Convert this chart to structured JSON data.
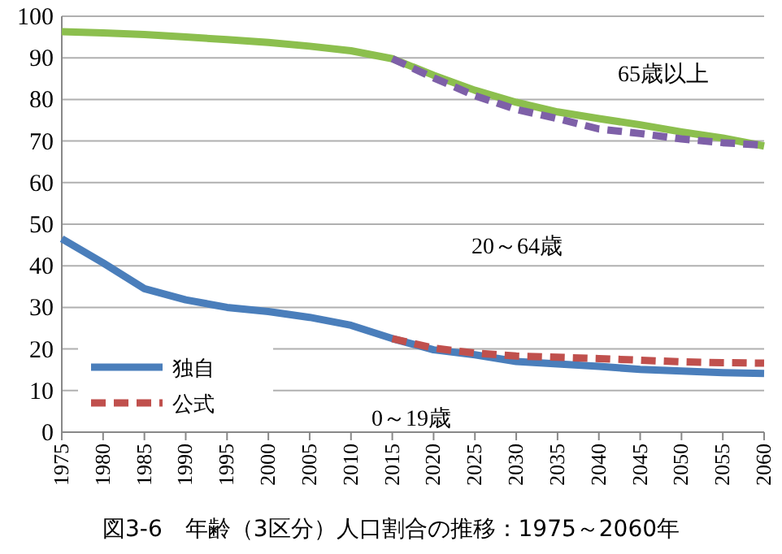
{
  "chart_data": {
    "type": "line",
    "title": "図3-6　年齢（3区分）人口割合の推移：1975～2060年",
    "x": [
      1975,
      1980,
      1985,
      1990,
      1995,
      2000,
      2005,
      2010,
      2015,
      2020,
      2025,
      2030,
      2035,
      2040,
      2045,
      2050,
      2055,
      2060
    ],
    "xlim": [
      1975,
      2060
    ],
    "xticks": [
      1975,
      1980,
      1985,
      1990,
      1995,
      2000,
      2005,
      2010,
      2015,
      2020,
      2025,
      2030,
      2035,
      2040,
      2045,
      2050,
      2055,
      2060
    ],
    "ylim": [
      0,
      100
    ],
    "yticks": [
      0,
      10,
      20,
      30,
      40,
      50,
      60,
      70,
      80,
      90,
      100
    ],
    "grid": "y",
    "legend": "bottom left",
    "marker": "none",
    "series": [
      {
        "name": "独自",
        "color": "#4a7ebb",
        "line_style": "solid",
        "values": [
          46.5,
          40.7,
          34.5,
          31.8,
          30,
          29,
          27.6,
          25.7,
          22.5,
          19.8,
          18.6,
          17,
          16.4,
          15.8,
          15.1,
          14.7,
          14.3,
          14.1
        ]
      },
      {
        "name": "公式",
        "color": "#c0504d",
        "line_style": "dashed",
        "values": [
          null,
          null,
          null,
          null,
          null,
          null,
          null,
          null,
          22.5,
          20.2,
          19,
          18.3,
          18,
          17.7,
          17.3,
          16.9,
          16.7,
          16.6
        ]
      },
      {
        "color": "#8cbf4e",
        "line_style": "solid",
        "values": [
          96.3,
          96,
          95.6,
          95,
          94.4,
          93.7,
          92.8,
          91.7,
          89.8,
          85.8,
          82.2,
          79.3,
          77,
          75.4,
          73.9,
          72.2,
          70.7,
          68.8
        ]
      },
      {
        "color": "#7e60a8",
        "line_style": "dashed",
        "values": [
          null,
          null,
          null,
          null,
          null,
          null,
          null,
          null,
          89.8,
          85.2,
          80.9,
          77.6,
          75.4,
          72.9,
          71.8,
          70.5,
          69.6,
          69
        ]
      }
    ],
    "annotations": [
      "65歳以上",
      "20～64歳",
      "0～19歳"
    ]
  }
}
